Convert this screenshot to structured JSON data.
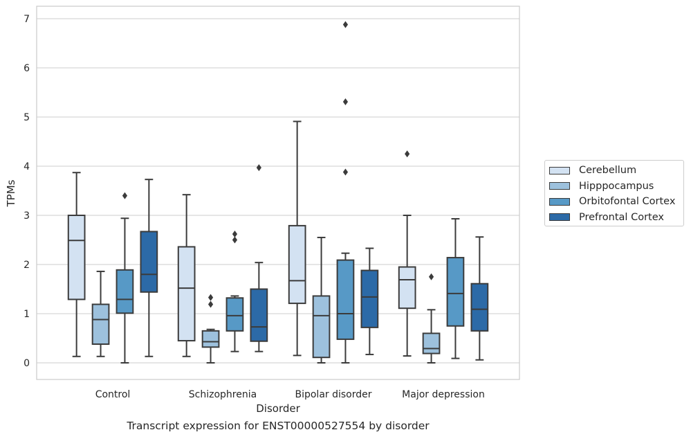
{
  "chart_data": {
    "type": "box",
    "caption": "Transcript expression for ENST00000527554 by disorder",
    "xlabel": "Disorder",
    "ylabel": "TPMs",
    "ylim": [
      -0.33,
      7.22
    ],
    "yticks": [
      0,
      1,
      2,
      3,
      4,
      5,
      6,
      7
    ],
    "grid": true,
    "legend_position": "right",
    "categories": [
      "Control",
      "Schizophrenia",
      "Bipolar disorder",
      "Major depression"
    ],
    "series": [
      {
        "name": "Cerebellum",
        "color": "#d3e2f2",
        "boxes": [
          {
            "whisker_low": 0.13,
            "q1": 1.29,
            "median": 2.49,
            "q3": 3.0,
            "whisker_high": 3.87,
            "outliers": []
          },
          {
            "whisker_low": 0.13,
            "q1": 0.45,
            "median": 1.52,
            "q3": 2.36,
            "whisker_high": 3.42,
            "outliers": []
          },
          {
            "whisker_low": 0.15,
            "q1": 1.21,
            "median": 1.67,
            "q3": 2.79,
            "whisker_high": 4.91,
            "outliers": []
          },
          {
            "whisker_low": 0.14,
            "q1": 1.11,
            "median": 1.69,
            "q3": 1.95,
            "whisker_high": 3.0,
            "outliers": [
              4.25
            ]
          }
        ]
      },
      {
        "name": "Hipppocampus",
        "color": "#9dc1dd",
        "boxes": [
          {
            "whisker_low": 0.13,
            "q1": 0.38,
            "median": 0.88,
            "q3": 1.19,
            "whisker_high": 1.86,
            "outliers": []
          },
          {
            "whisker_low": 0.0,
            "q1": 0.32,
            "median": 0.43,
            "q3": 0.65,
            "whisker_high": 0.68,
            "outliers": [
              1.19,
              1.33
            ]
          },
          {
            "whisker_low": 0.0,
            "q1": 0.11,
            "median": 0.96,
            "q3": 1.36,
            "whisker_high": 2.55,
            "outliers": []
          },
          {
            "whisker_low": 0.0,
            "q1": 0.19,
            "median": 0.29,
            "q3": 0.6,
            "whisker_high": 1.08,
            "outliers": [
              1.75
            ]
          }
        ]
      },
      {
        "name": "Orbitofontal Cortex",
        "color": "#5799c6",
        "boxes": [
          {
            "whisker_low": 0.0,
            "q1": 1.01,
            "median": 1.29,
            "q3": 1.89,
            "whisker_high": 2.94,
            "outliers": [
              3.4
            ]
          },
          {
            "whisker_low": 0.23,
            "q1": 0.65,
            "median": 0.96,
            "q3": 1.32,
            "whisker_high": 1.36,
            "outliers": [
              2.5,
              2.62
            ]
          },
          {
            "whisker_low": 0.0,
            "q1": 0.48,
            "median": 1.0,
            "q3": 2.09,
            "whisker_high": 2.23,
            "outliers": [
              3.88,
              5.31,
              6.88
            ]
          },
          {
            "whisker_low": 0.09,
            "q1": 0.75,
            "median": 1.41,
            "q3": 2.14,
            "whisker_high": 2.93,
            "outliers": []
          }
        ]
      },
      {
        "name": "Prefrontal Cortex",
        "color": "#2c6aa7",
        "boxes": [
          {
            "whisker_low": 0.13,
            "q1": 1.44,
            "median": 1.8,
            "q3": 2.67,
            "whisker_high": 3.73,
            "outliers": []
          },
          {
            "whisker_low": 0.23,
            "q1": 0.44,
            "median": 0.73,
            "q3": 1.5,
            "whisker_high": 2.04,
            "outliers": [
              3.97
            ]
          },
          {
            "whisker_low": 0.17,
            "q1": 0.72,
            "median": 1.34,
            "q3": 1.88,
            "whisker_high": 2.33,
            "outliers": []
          },
          {
            "whisker_low": 0.06,
            "q1": 0.65,
            "median": 1.09,
            "q3": 1.61,
            "whisker_high": 2.56,
            "outliers": []
          }
        ]
      }
    ]
  }
}
